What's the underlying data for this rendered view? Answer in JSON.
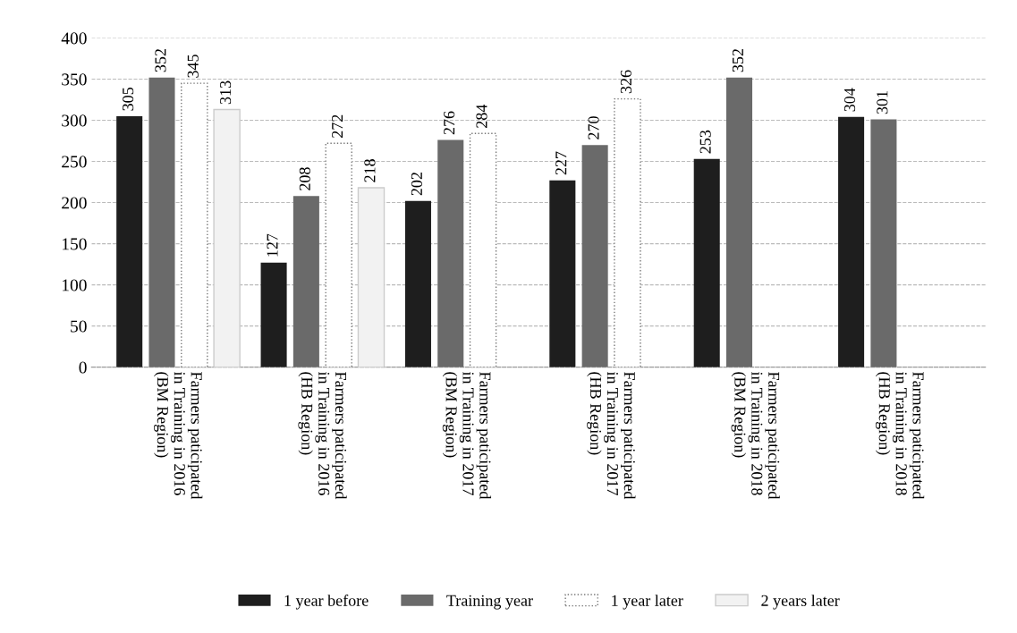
{
  "chart_data": {
    "type": "bar",
    "categories": [
      "Farmers paticipated\nin Training in 2016\n(BM Region)",
      "Farmers paticipated\nin Training in 2016\n(HB Region)",
      "Farmers paticipated\nin Training in 2017\n(BM Region)",
      "Farmers paticipated\nin Training in 2017\n(HB Region)",
      "Farmers paticipated\nin Training in 2018\n(BM Region)",
      "Farmers paticipated\nin Training in 2018\n(HB Region)"
    ],
    "series": [
      {
        "name": "1 year before",
        "color": "#1e1e1e",
        "values": [
          305,
          127,
          202,
          227,
          253,
          304
        ]
      },
      {
        "name": "Training year",
        "color": "#6a6a6a",
        "values": [
          352,
          208,
          276,
          270,
          352,
          301
        ]
      },
      {
        "name": "1 year later",
        "color": "#ffffff",
        "line_style": "dotted",
        "values": [
          345,
          272,
          284,
          326,
          null,
          null
        ]
      },
      {
        "name": "2 years later",
        "color": "#f2f2f2",
        "line_style": "solid",
        "values": [
          313,
          218,
          null,
          null,
          null,
          null
        ]
      }
    ],
    "ylim": [
      0,
      400
    ],
    "yticks": [
      0,
      50,
      100,
      150,
      200,
      250,
      300,
      350,
      400
    ],
    "grid": "y",
    "data_labels": true,
    "legend": "bottom"
  }
}
